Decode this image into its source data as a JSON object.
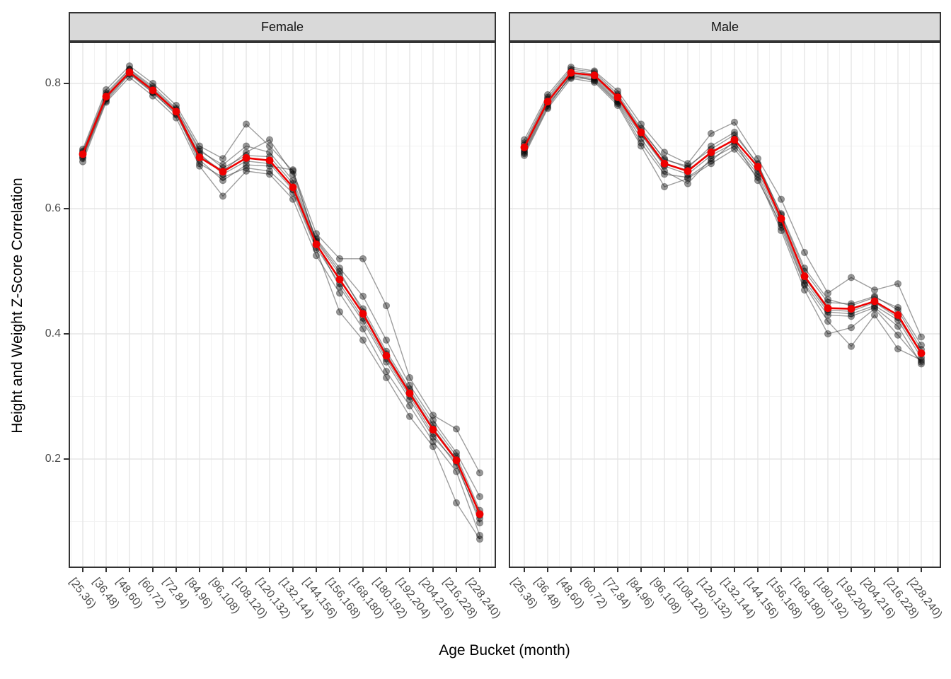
{
  "chart_data": {
    "type": "line",
    "title": "",
    "xlabel": "Age Bucket (month)",
    "ylabel": "Height and Weight Z-Score Correlation",
    "legend_position": "none",
    "grid": "major and minor, light gray on white (theme_bw)",
    "ylim": [
      0.026,
      0.867
    ],
    "yticks": [
      "0.2",
      "0.4",
      "0.6",
      "0.8"
    ],
    "ytick_values": [
      0.2,
      0.4,
      0.6,
      0.8
    ],
    "yminor_values": [
      0.1,
      0.3,
      0.5,
      0.7
    ],
    "categories": [
      "[25,36)",
      "[36,48)",
      "[48,60)",
      "[60,72)",
      "[72,84)",
      "[84,96)",
      "[96,108)",
      "[108,120)",
      "[120,132)",
      "[132,144)",
      "[144,156)",
      "[156,168)",
      "[168,180)",
      "[180,192)",
      "[192,204)",
      "[204,216)",
      "[216,228)",
      "[228,240)"
    ],
    "colors": {
      "mean_line": "#ee0000",
      "individual_line": "rgba(40,40,40,0.45)",
      "individual_point": "rgba(0,0,0,0.40)"
    },
    "facets": [
      {
        "label": "Female",
        "mean": [
          0.687,
          0.779,
          0.818,
          0.789,
          0.755,
          0.682,
          0.659,
          0.681,
          0.677,
          0.634,
          0.543,
          0.487,
          0.432,
          0.365,
          0.305,
          0.247,
          0.198,
          0.112
        ],
        "individuals": [
          [
            0.68,
            0.772,
            0.815,
            0.785,
            0.752,
            0.688,
            0.655,
            0.676,
            0.672,
            0.63,
            0.538,
            0.48,
            0.425,
            0.36,
            0.3,
            0.24,
            0.19,
            0.105
          ],
          [
            0.692,
            0.785,
            0.823,
            0.795,
            0.76,
            0.695,
            0.665,
            0.685,
            0.683,
            0.64,
            0.548,
            0.495,
            0.44,
            0.372,
            0.312,
            0.255,
            0.205,
            0.118
          ],
          [
            0.675,
            0.77,
            0.81,
            0.78,
            0.745,
            0.668,
            0.62,
            0.66,
            0.655,
            0.615,
            0.525,
            0.465,
            0.408,
            0.34,
            0.285,
            0.228,
            0.18,
            0.078
          ],
          [
            0.695,
            0.79,
            0.828,
            0.8,
            0.765,
            0.7,
            0.68,
            0.735,
            0.7,
            0.66,
            0.56,
            0.52,
            0.52,
            0.445,
            0.33,
            0.27,
            0.248,
            0.178
          ],
          [
            0.684,
            0.776,
            0.82,
            0.79,
            0.756,
            0.685,
            0.66,
            0.69,
            0.71,
            0.655,
            0.55,
            0.5,
            0.435,
            0.368,
            0.308,
            0.25,
            0.2,
            0.11
          ],
          [
            0.688,
            0.78,
            0.818,
            0.788,
            0.754,
            0.672,
            0.65,
            0.665,
            0.66,
            0.625,
            0.535,
            0.435,
            0.39,
            0.33,
            0.268,
            0.22,
            0.13,
            0.072
          ],
          [
            0.69,
            0.782,
            0.822,
            0.792,
            0.758,
            0.692,
            0.67,
            0.7,
            0.69,
            0.645,
            0.552,
            0.505,
            0.46,
            0.39,
            0.318,
            0.262,
            0.21,
            0.14
          ],
          [
            0.682,
            0.775,
            0.816,
            0.786,
            0.75,
            0.678,
            0.645,
            0.67,
            0.668,
            0.662,
            0.545,
            0.475,
            0.42,
            0.355,
            0.295,
            0.235,
            0.195,
            0.098
          ]
        ]
      },
      {
        "label": "Male",
        "mean": [
          0.698,
          0.771,
          0.817,
          0.813,
          0.778,
          0.722,
          0.672,
          0.66,
          0.69,
          0.71,
          0.667,
          0.584,
          0.492,
          0.441,
          0.44,
          0.452,
          0.43,
          0.369
        ],
        "individuals": [
          [
            0.69,
            0.765,
            0.812,
            0.808,
            0.772,
            0.718,
            0.668,
            0.655,
            0.685,
            0.705,
            0.66,
            0.578,
            0.485,
            0.435,
            0.432,
            0.445,
            0.422,
            0.362
          ],
          [
            0.705,
            0.778,
            0.823,
            0.818,
            0.783,
            0.728,
            0.678,
            0.668,
            0.695,
            0.718,
            0.672,
            0.59,
            0.5,
            0.45,
            0.448,
            0.46,
            0.438,
            0.375
          ],
          [
            0.685,
            0.76,
            0.808,
            0.802,
            0.765,
            0.7,
            0.635,
            0.648,
            0.672,
            0.695,
            0.65,
            0.565,
            0.47,
            0.4,
            0.41,
            0.44,
            0.398,
            0.355
          ],
          [
            0.71,
            0.782,
            0.826,
            0.82,
            0.788,
            0.735,
            0.69,
            0.672,
            0.72,
            0.738,
            0.68,
            0.615,
            0.53,
            0.465,
            0.49,
            0.47,
            0.48,
            0.395
          ],
          [
            0.695,
            0.77,
            0.815,
            0.81,
            0.775,
            0.72,
            0.67,
            0.662,
            0.688,
            0.712,
            0.665,
            0.582,
            0.49,
            0.438,
            0.436,
            0.45,
            0.426,
            0.368
          ],
          [
            0.692,
            0.768,
            0.81,
            0.806,
            0.77,
            0.712,
            0.66,
            0.64,
            0.68,
            0.7,
            0.655,
            0.57,
            0.478,
            0.42,
            0.38,
            0.43,
            0.376,
            0.358
          ],
          [
            0.702,
            0.775,
            0.82,
            0.815,
            0.78,
            0.725,
            0.68,
            0.665,
            0.7,
            0.722,
            0.67,
            0.592,
            0.505,
            0.455,
            0.445,
            0.458,
            0.442,
            0.382
          ],
          [
            0.688,
            0.762,
            0.814,
            0.804,
            0.768,
            0.705,
            0.655,
            0.65,
            0.676,
            0.708,
            0.645,
            0.575,
            0.48,
            0.43,
            0.428,
            0.442,
            0.412,
            0.352
          ]
        ]
      }
    ]
  }
}
